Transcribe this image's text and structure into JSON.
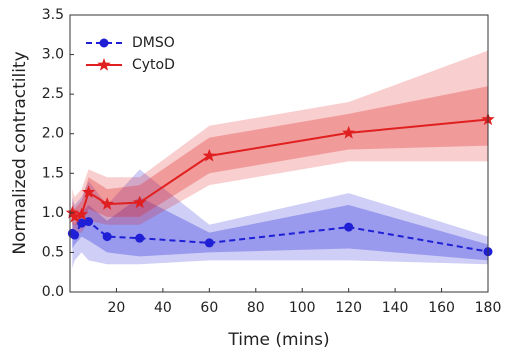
{
  "chart_data": {
    "type": "line",
    "xlabel": "Time (mins)",
    "ylabel": "Normalized contractility",
    "x": [
      1,
      2,
      5,
      8,
      16,
      30,
      60,
      120,
      180
    ],
    "xlim": [
      0,
      180
    ],
    "xticks": [
      20,
      40,
      60,
      80,
      100,
      120,
      140,
      160,
      180
    ],
    "ylim": [
      0,
      3.5
    ],
    "yticks": [
      {
        "value": 0,
        "label": "0.0"
      },
      0.5,
      {
        "value": 1,
        "label": "1.0"
      },
      1.5,
      {
        "value": 2,
        "label": "2.0"
      },
      2.5,
      {
        "value": 3,
        "label": "3.0"
      },
      3.5
    ],
    "legend": "upper left",
    "series": [
      {
        "name": "DMSO",
        "color": "#1f1fd6",
        "dash": true,
        "marker": "circle",
        "values": [
          0.74,
          0.72,
          0.87,
          0.89,
          0.7,
          0.68,
          0.62,
          0.82,
          0.51
        ],
        "inner_lower": [
          0.55,
          0.6,
          0.7,
          0.65,
          0.5,
          0.45,
          0.5,
          0.55,
          0.4
        ],
        "inner_upper": [
          0.9,
          0.85,
          1.0,
          1.1,
          0.9,
          1.2,
          0.75,
          1.1,
          0.6
        ],
        "outer_lower": [
          0.3,
          0.4,
          0.5,
          0.4,
          0.35,
          0.35,
          0.4,
          0.4,
          0.35
        ],
        "outer_upper": [
          1.2,
          1.1,
          1.2,
          1.4,
          1.1,
          1.55,
          0.85,
          1.25,
          0.7
        ]
      },
      {
        "name": "CytoD",
        "color": "#e02020",
        "dash": false,
        "marker": "star",
        "values": [
          1.0,
          0.95,
          0.98,
          1.26,
          1.11,
          1.13,
          1.72,
          2.01,
          2.18
        ],
        "inner_lower": [
          0.85,
          0.85,
          0.85,
          1.05,
          0.95,
          0.95,
          1.5,
          1.8,
          1.85
        ],
        "inner_upper": [
          1.15,
          1.05,
          1.15,
          1.45,
          1.3,
          1.35,
          1.95,
          2.25,
          2.6
        ],
        "outer_lower": [
          0.7,
          0.75,
          0.75,
          0.9,
          0.85,
          0.85,
          1.35,
          1.65,
          1.65
        ],
        "outer_upper": [
          1.3,
          1.2,
          1.3,
          1.55,
          1.45,
          1.45,
          2.1,
          2.4,
          3.05
        ]
      }
    ]
  }
}
